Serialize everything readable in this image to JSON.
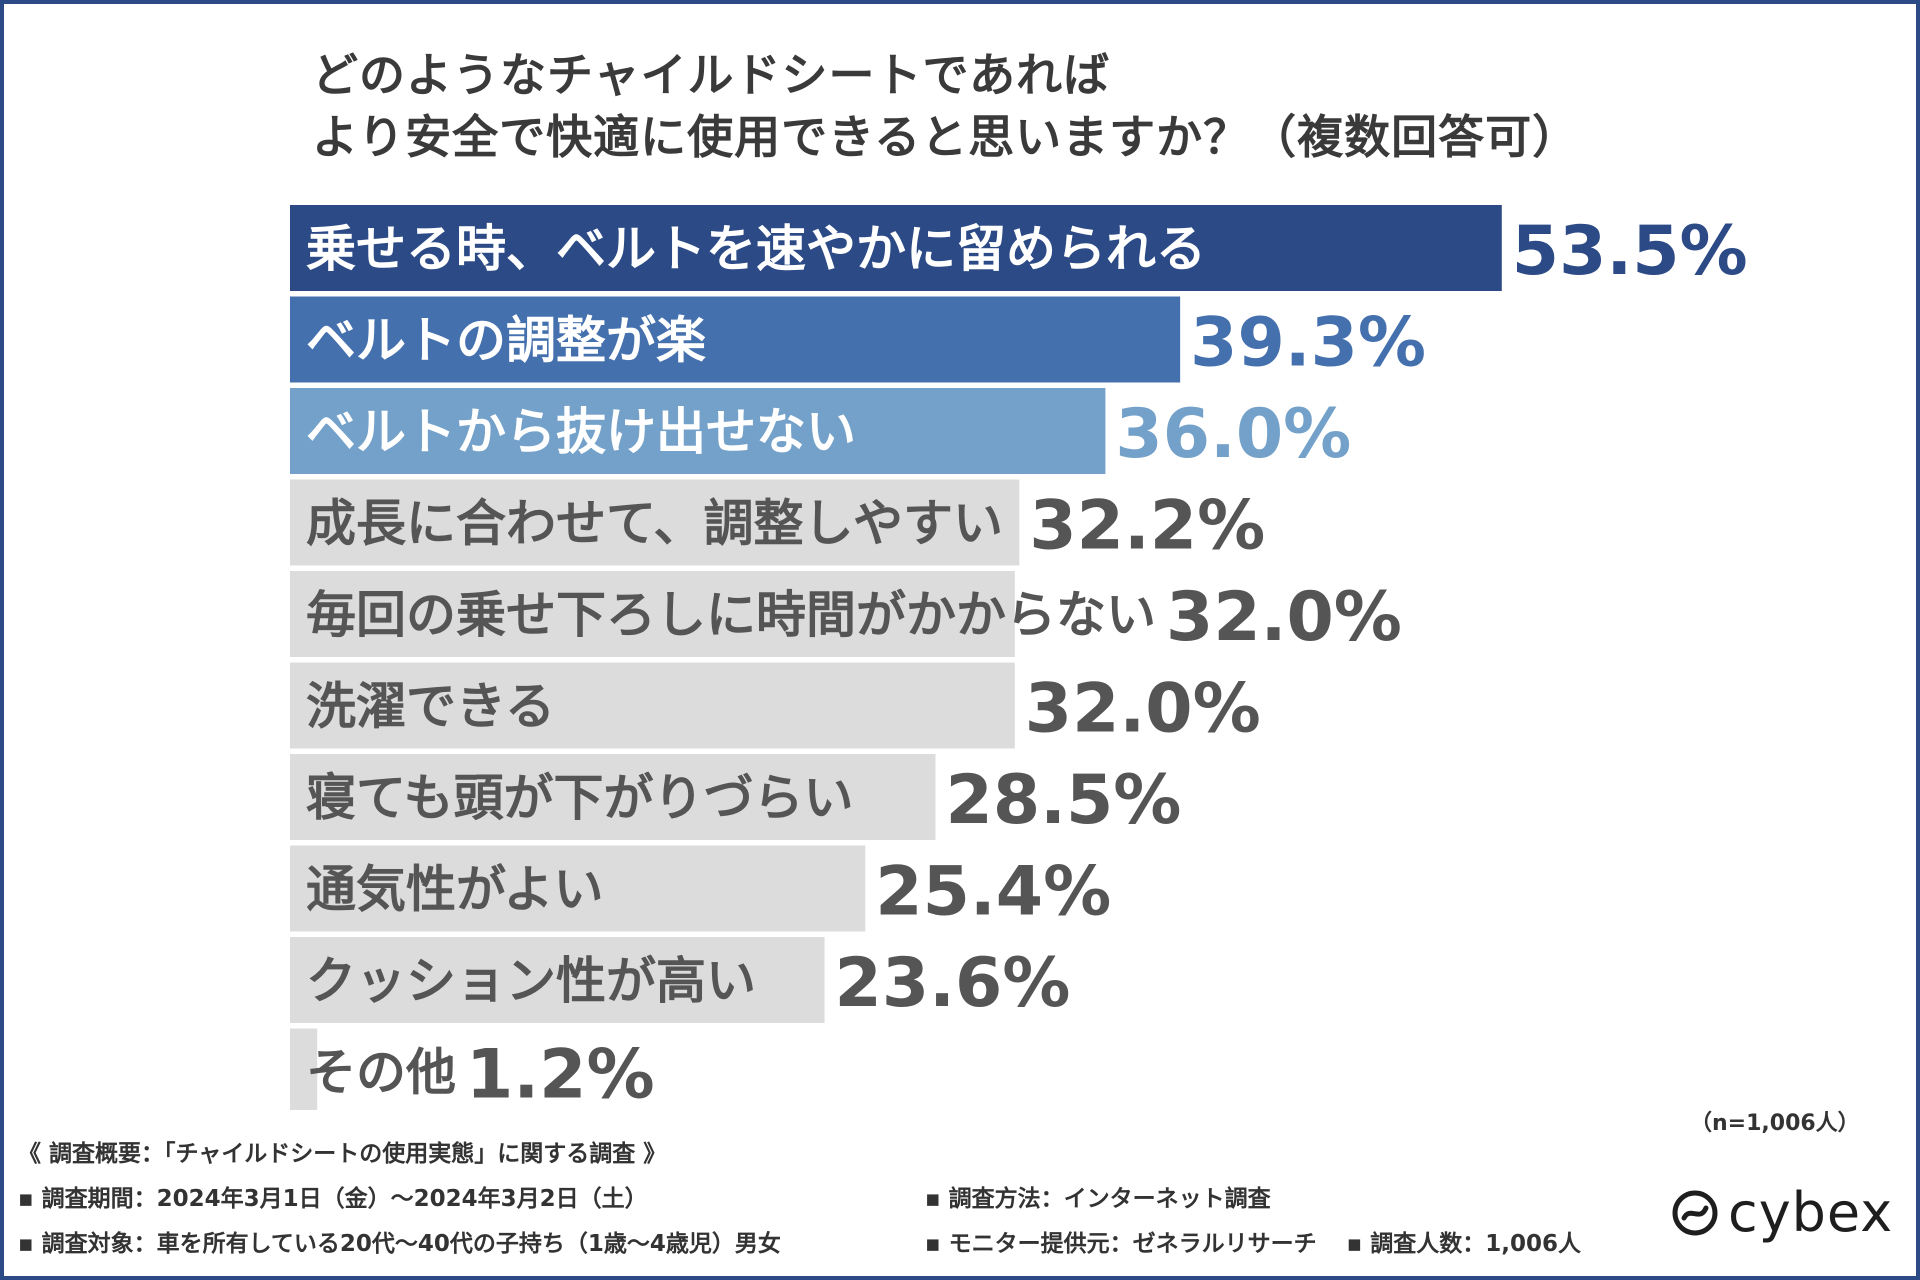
{
  "title": {
    "line1": "どのようなチャイルドシートであれば",
    "line2": "より安全で快適に使用できると思いますか？（複数回答可）"
  },
  "chart_data": {
    "type": "bar",
    "orientation": "horizontal",
    "categories": [
      "乗せる時、ベルトを速やかに留められる",
      "ベルトの調整が楽",
      "ベルトから抜け出せない",
      "成長に合わせて、調整しやすい",
      "毎回の乗せ下ろしに時間がかからない",
      "洗濯できる",
      "寝ても頭が下がりづらい",
      "通気性がよい",
      "クッション性が高い",
      "その他"
    ],
    "values": [
      53.5,
      39.3,
      36.0,
      32.2,
      32.0,
      32.0,
      28.5,
      25.4,
      23.6,
      1.2
    ],
    "value_labels": [
      "53.5%",
      "39.3%",
      "36.0%",
      "32.2%",
      "32.0%",
      "32.0%",
      "28.5%",
      "25.4%",
      "23.6%",
      "1.2%"
    ],
    "unit": "%",
    "colors": {
      "top1": "#2c4a86",
      "top2": "#4470ae",
      "top3": "#74a1c9",
      "other": "#dcdcdc",
      "label_on_dark": "#ffffff",
      "label_on_light": "#555555",
      "value_other": "#555555"
    }
  },
  "sample": "（n=1,006人）",
  "footer": {
    "overview": "《 調査概要：「チャイルドシートの使用実態」に関する調査 》",
    "period": "▪ 調査期間：2024年3月1日（金）～2024年3月2日（土）",
    "target": "▪ 調査対象：車を所有している20代～40代の子持ち（1歳～4歳児）男女",
    "method": "▪ 調査方法：インターネット調査",
    "provider": "▪ モニター提供元：ゼネラルリサーチ",
    "count": "▪ 調査人数：1,006人"
  },
  "brand": {
    "name": "cybex",
    "icon": "cybex-logo-icon"
  }
}
